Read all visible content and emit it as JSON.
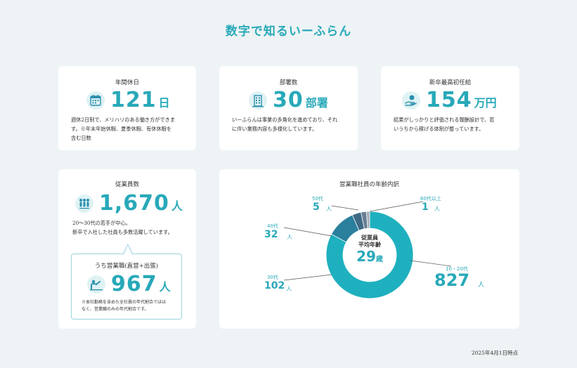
{
  "page": {
    "title": "数字で知るいーふらん",
    "date_note": "2025年4月1日時点"
  },
  "holidays": {
    "title": "年間休日",
    "value": "121",
    "unit": "日",
    "desc": [
      "週休2日制で、メリハリのある働き方ができま",
      "す。※年末年始休暇、夏季休暇、有休休暇を",
      "含む日数"
    ],
    "icon": "calendar-icon"
  },
  "departments": {
    "title": "部署数",
    "value": "30",
    "unit": "部署",
    "desc": [
      "いーふらんは事業の多角化を進めており、それ",
      "に伴い業務内容も多様化しています。"
    ],
    "icon": "building-icon"
  },
  "salary": {
    "title": "新卒最高初任給",
    "value": "154",
    "unit": "万円",
    "desc": [
      "結果がしっかりと評価される報酬設計で、若",
      "いうちから稼げる体制が整っています。"
    ],
    "icon": "money-hand-icon"
  },
  "employees": {
    "title": "従業員数",
    "value": "1,670",
    "unit": "人",
    "desc": [
      "20～30代の若手が中心。",
      "新卒で入社した社員も多数活躍しています。"
    ],
    "icon": "people-icon",
    "sales": {
      "title": "うち営業職(直営+出張)",
      "value": "967",
      "unit": "人",
      "note": [
        "※本社勤務を含めた全社員の年代割合ではは",
        "なく、営業職のみの年代割合です。"
      ],
      "icon": "presenter-icon"
    }
  },
  "age_chart": {
    "title": "営業職社員の年齢内訳",
    "center_label": [
      "従業員",
      "平均年齢"
    ],
    "center_value": "29",
    "center_unit": "歳"
  },
  "chart_data": {
    "type": "pie",
    "title": "営業職社員の年齢内訳",
    "categories": [
      "10・20代",
      "30代",
      "40代",
      "50代",
      "60代以上"
    ],
    "values": [
      827,
      102,
      32,
      5,
      1
    ],
    "value_labels": [
      "827",
      "102",
      "32",
      "5",
      "1"
    ],
    "unit": "人",
    "colors": [
      "#1fb0bf",
      "#2a7f9c",
      "#3e6a86",
      "#667e94",
      "#a2aeb9"
    ]
  },
  "colors": {
    "accent": "#28a9b9",
    "background": "#eef3f5"
  }
}
